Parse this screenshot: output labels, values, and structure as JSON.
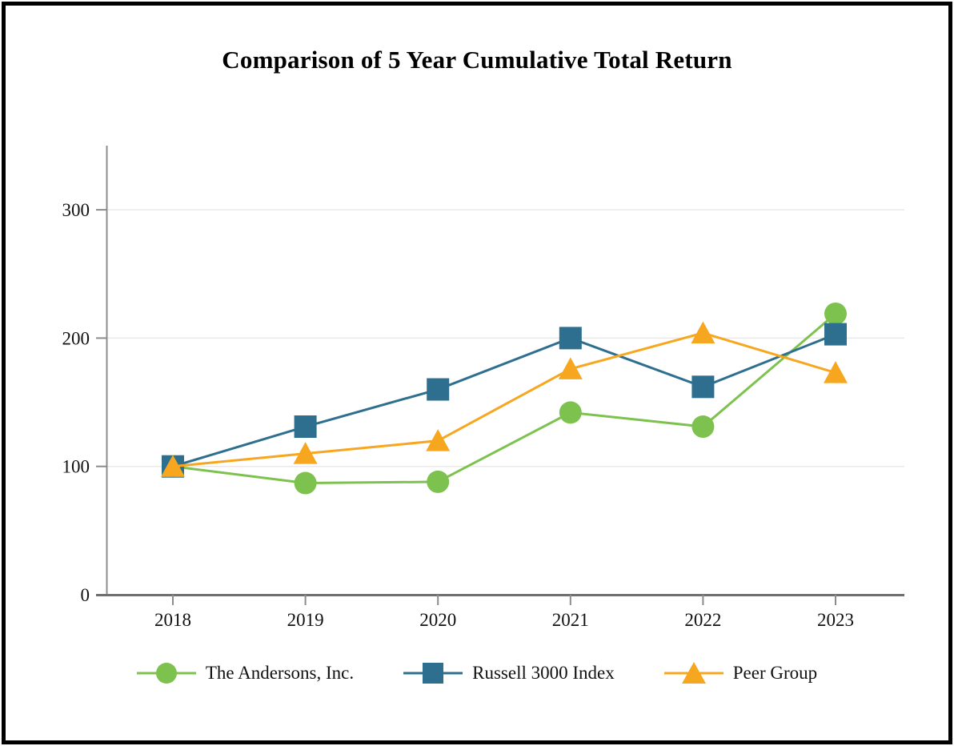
{
  "chart_data": {
    "type": "line",
    "title": "Comparison of 5 Year Cumulative Total Return",
    "categories": [
      "2018",
      "2019",
      "2020",
      "2021",
      "2022",
      "2023"
    ],
    "series": [
      {
        "name": "The Andersons, Inc.",
        "marker": "circle",
        "color": "#7DC24E",
        "values": [
          100,
          87,
          88,
          142,
          131,
          219
        ]
      },
      {
        "name": "Russell 3000 Index",
        "marker": "square",
        "color": "#2E6F8F",
        "values": [
          100,
          131,
          160,
          200,
          162,
          203
        ]
      },
      {
        "name": "Peer Group",
        "marker": "triangle",
        "color": "#F7A71F",
        "values": [
          100,
          110,
          120,
          176,
          204,
          173
        ]
      }
    ],
    "ylim": [
      0,
      350
    ],
    "yticks": [
      0,
      100,
      200,
      300
    ],
    "grid": "horizontal",
    "legend_position": "bottom"
  },
  "colors": {
    "axis": "#8C8C8C",
    "x_axis": "#6F6F6F",
    "grid": "#E9E9E9",
    "text": "#111111",
    "background": "#FFFFFF",
    "border": "#000000"
  }
}
